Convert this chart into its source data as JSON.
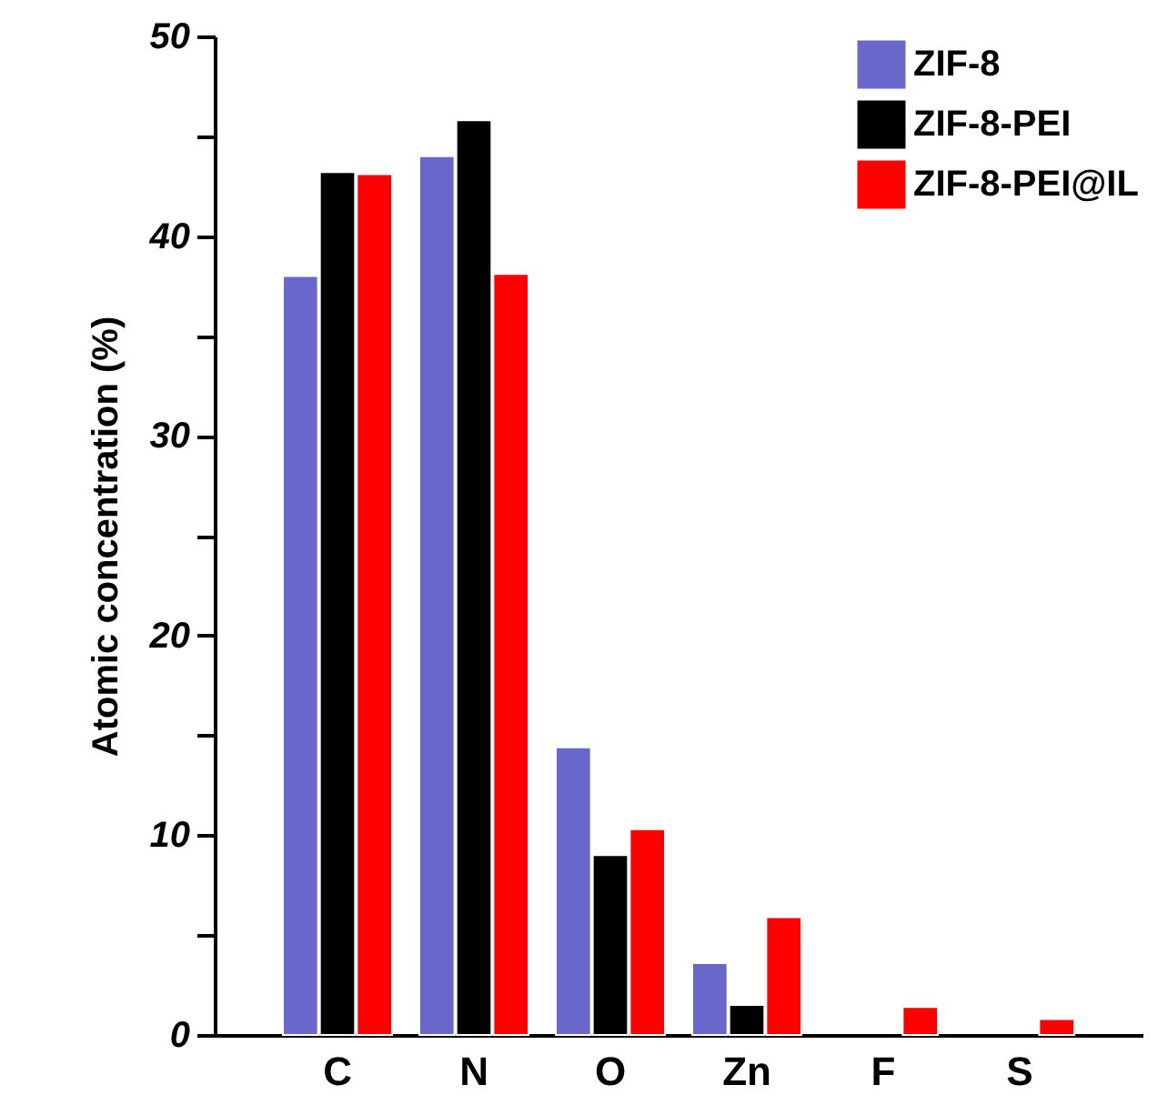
{
  "chart_data": {
    "type": "bar",
    "ylabel": "Atomic concentration (%)",
    "categories": [
      "C",
      "N",
      "O",
      "Zn",
      "F",
      "S"
    ],
    "series": [
      {
        "name": "ZIF-8",
        "color": "#6a67cb",
        "values": [
          38.0,
          44.0,
          14.4,
          3.6,
          null,
          null
        ]
      },
      {
        "name": "ZIF-8-PEI",
        "color": "#000000",
        "values": [
          43.2,
          45.8,
          9.0,
          1.5,
          null,
          null
        ]
      },
      {
        "name": "ZIF-8-PEI@IL",
        "color": "#ff0000",
        "values": [
          43.1,
          38.1,
          10.3,
          5.9,
          1.4,
          0.8
        ]
      }
    ],
    "ylim": [
      0,
      50
    ],
    "yticks": [
      0,
      {
        "value": 5,
        "label": null
      },
      10,
      {
        "value": 15,
        "label": null
      },
      20,
      {
        "value": 25,
        "label": null
      },
      30,
      {
        "value": 35,
        "label": null
      },
      40,
      {
        "value": 45,
        "label": null
      },
      50
    ],
    "grid": false,
    "legend": "top right"
  }
}
